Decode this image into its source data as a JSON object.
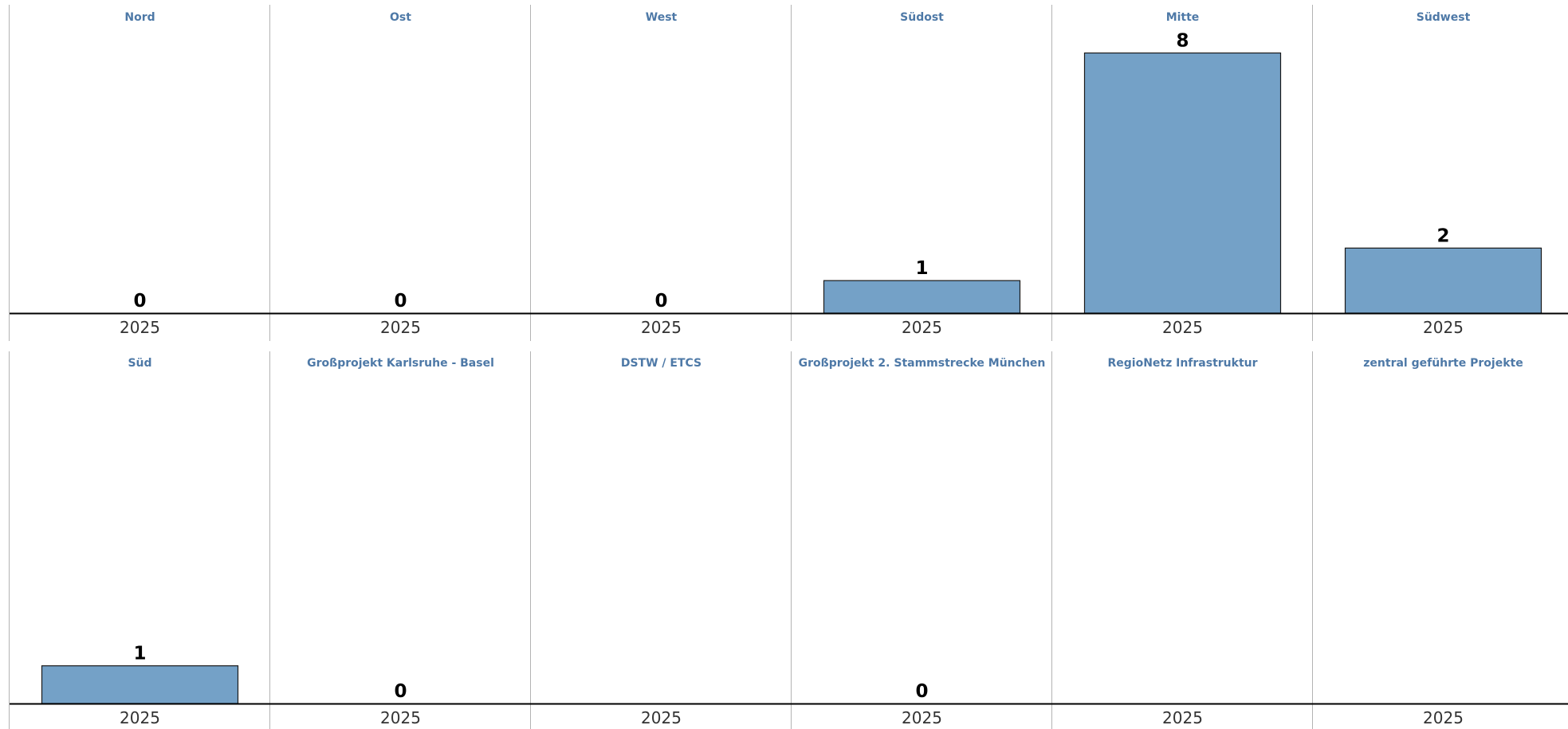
{
  "colors": {
    "bar": "#74a1c7",
    "bar_stroke": "#1a1a1a",
    "title": "#4e79a7",
    "divider": "#b3b3b3",
    "axis": "#000000",
    "text": "#000000",
    "tick": "#333333"
  },
  "chart_data": {
    "type": "bar",
    "layout": "small-multiples",
    "grid": false,
    "legend": "none",
    "ylim": [
      0,
      8.6
    ],
    "panels": [
      {
        "title": "Nord",
        "categories": [
          "2025"
        ],
        "values": [
          0
        ]
      },
      {
        "title": "Ost",
        "categories": [
          "2025"
        ],
        "values": [
          0
        ]
      },
      {
        "title": "West",
        "categories": [
          "2025"
        ],
        "values": [
          0
        ]
      },
      {
        "title": "Südost",
        "categories": [
          "2025"
        ],
        "values": [
          1
        ]
      },
      {
        "title": "Mitte",
        "categories": [
          "2025"
        ],
        "values": [
          8
        ]
      },
      {
        "title": "Südwest",
        "categories": [
          "2025"
        ],
        "values": [
          2
        ]
      },
      {
        "title": "Süd",
        "categories": [
          "2025"
        ],
        "values": [
          1
        ]
      },
      {
        "title": "Großprojekt Karlsruhe - Basel",
        "categories": [
          "2025"
        ],
        "values": [
          0
        ]
      },
      {
        "title": "DSTW / ETCS",
        "categories": [
          "2025"
        ],
        "values": [
          null
        ]
      },
      {
        "title": "Großprojekt 2. Stammstrecke München",
        "categories": [
          "2025"
        ],
        "values": [
          0
        ]
      },
      {
        "title": "RegioNetz Infrastruktur",
        "categories": [
          "2025"
        ],
        "values": [
          null
        ]
      },
      {
        "title": "zentral geführte Projekte",
        "categories": [
          "2025"
        ],
        "values": [
          null
        ]
      }
    ]
  }
}
